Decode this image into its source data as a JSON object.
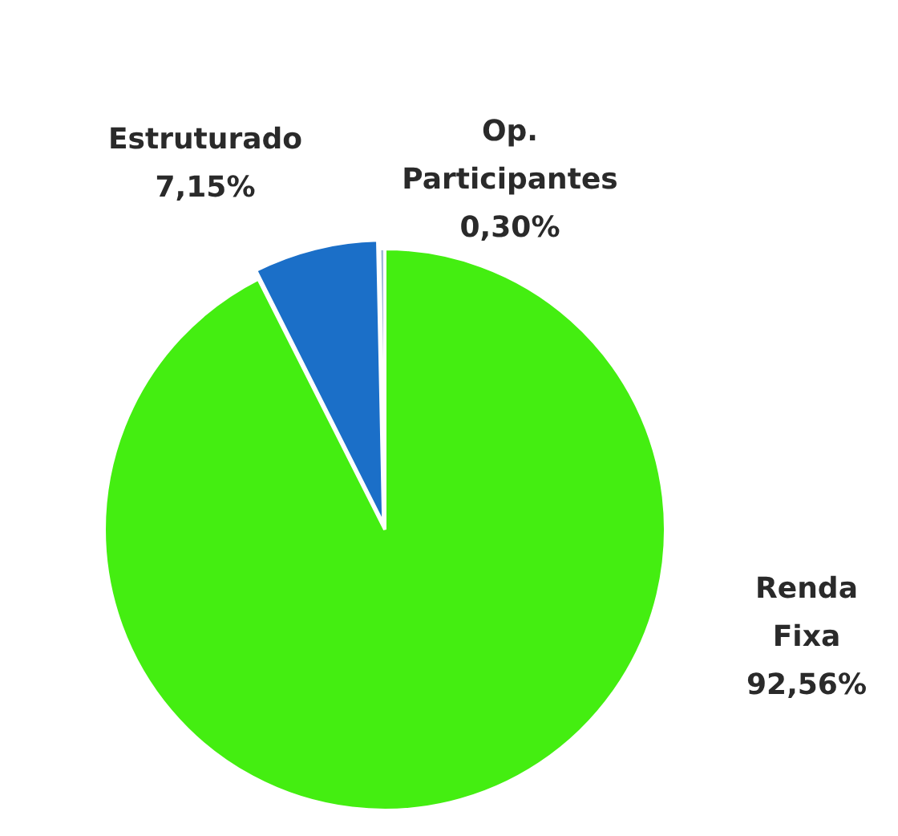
{
  "chart_data": {
    "type": "pie",
    "categories": [
      "Renda Fixa",
      "Estruturado",
      "Op. Participantes"
    ],
    "values": [
      92.56,
      7.15,
      0.3
    ],
    "colors": [
      "#44ee11",
      "#1b6fc8",
      "#9fb8d8"
    ],
    "value_labels": [
      "92,56%",
      "7,15%",
      "0,30%"
    ],
    "legend": false
  }
}
